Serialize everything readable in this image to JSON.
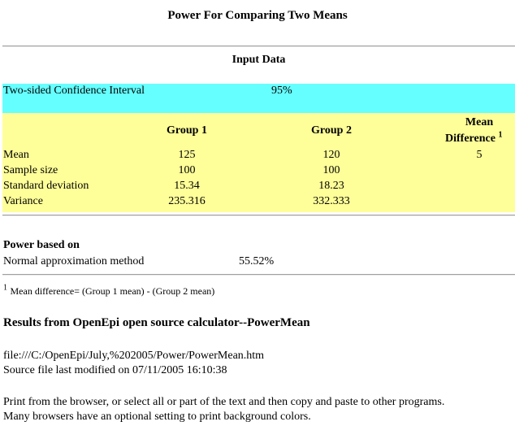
{
  "title": "Power For Comparing Two Means",
  "input_section": {
    "heading": "Input Data",
    "confidence": {
      "label": "Two-sided Confidence Interval",
      "value": "95%"
    },
    "columns": {
      "group1": "Group 1",
      "group2": "Group 2",
      "mean_diff_line1": "Mean",
      "mean_diff_line2": "Difference",
      "mean_diff_footnote_mark": "1"
    },
    "rows": [
      {
        "label": "Mean",
        "group1": "125",
        "group2": "120",
        "diff": "5"
      },
      {
        "label": "Sample size",
        "group1": "100",
        "group2": "100",
        "diff": ""
      },
      {
        "label": "Standard deviation",
        "group1": "15.34",
        "group2": "18.23",
        "diff": ""
      },
      {
        "label": "Variance",
        "group1": "235.316",
        "group2": "332.333",
        "diff": ""
      }
    ]
  },
  "power_section": {
    "heading": "Power based on",
    "method_label": "Normal approximation method",
    "method_value": "55.52%"
  },
  "footnote": {
    "mark": "1",
    "text": "Mean difference= (Group 1 mean) - (Group 2 mean)"
  },
  "results": {
    "heading": "Results from OpenEpi open source calculator--PowerMean",
    "file_path": "file:///C:/OpenEpi/July,%202005/Power/PowerMean.htm",
    "modified": "Source file last modified on 07/11/2005 16:10:38",
    "print_line1": "Print from the browser, or select all or part of the text and then copy and paste to other programs.",
    "print_line2": "Many browsers have an optional setting to print background colors."
  },
  "colors": {
    "cyan_band": "#66ffff",
    "yellow_band": "#ffff99"
  }
}
